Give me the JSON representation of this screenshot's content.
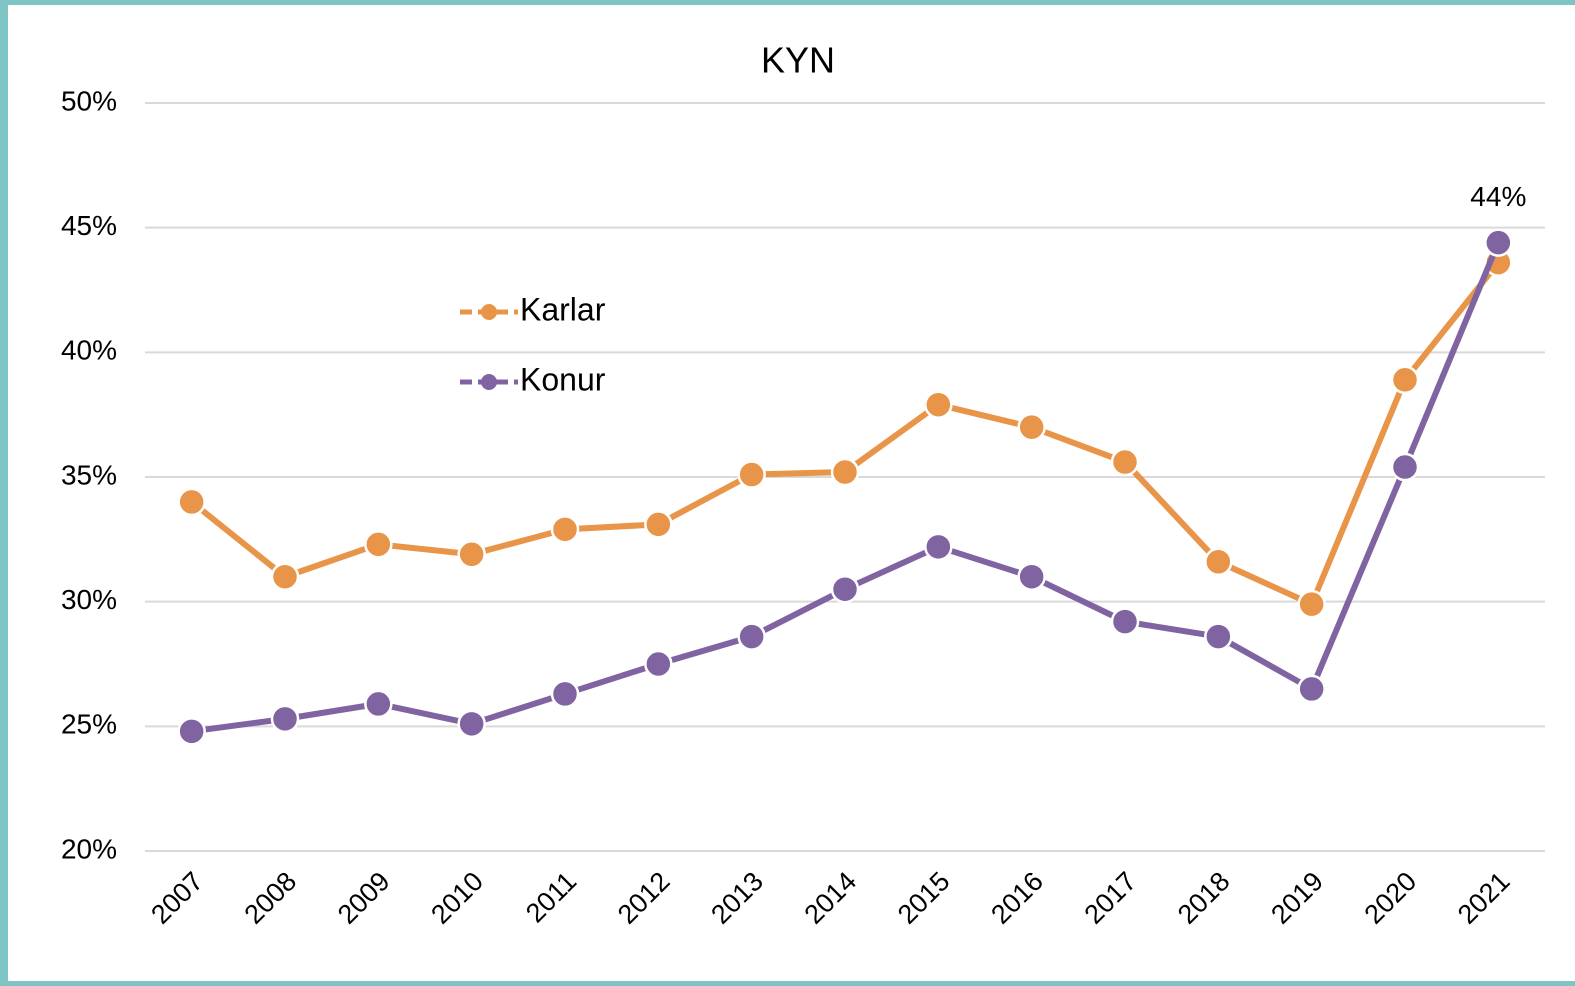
{
  "chart_data": {
    "type": "line",
    "title": "KYN",
    "categories": [
      "2007",
      "2008",
      "2009",
      "2010",
      "2011",
      "2012",
      "2013",
      "2014",
      "2015",
      "2016",
      "2017",
      "2018",
      "2019",
      "2020",
      "2021"
    ],
    "series": [
      {
        "name": "Karlar",
        "color": "#e8954a",
        "values": [
          34.0,
          31.0,
          32.3,
          31.9,
          32.9,
          33.1,
          35.1,
          35.2,
          37.9,
          37.0,
          35.6,
          31.6,
          29.9,
          38.9,
          43.6
        ]
      },
      {
        "name": "Konur",
        "color": "#8064a2",
        "values": [
          24.8,
          25.3,
          25.9,
          25.1,
          26.3,
          27.5,
          28.6,
          30.5,
          32.2,
          31.0,
          29.2,
          28.6,
          26.5,
          35.4,
          44.4
        ],
        "value_labels": [
          null,
          null,
          null,
          null,
          null,
          null,
          null,
          null,
          null,
          null,
          null,
          null,
          null,
          null,
          "44%"
        ]
      }
    ],
    "ylim": [
      20,
      50
    ],
    "yticks": [
      {
        "value": 20,
        "label": "20%"
      },
      {
        "value": 25,
        "label": "25%"
      },
      {
        "value": 30,
        "label": "30%"
      },
      {
        "value": 35,
        "label": "35%"
      },
      {
        "value": 40,
        "label": "40%"
      },
      {
        "value": 45,
        "label": "45%"
      },
      {
        "value": 50,
        "label": "50%"
      }
    ],
    "grid": true,
    "legend": "upper left"
  }
}
